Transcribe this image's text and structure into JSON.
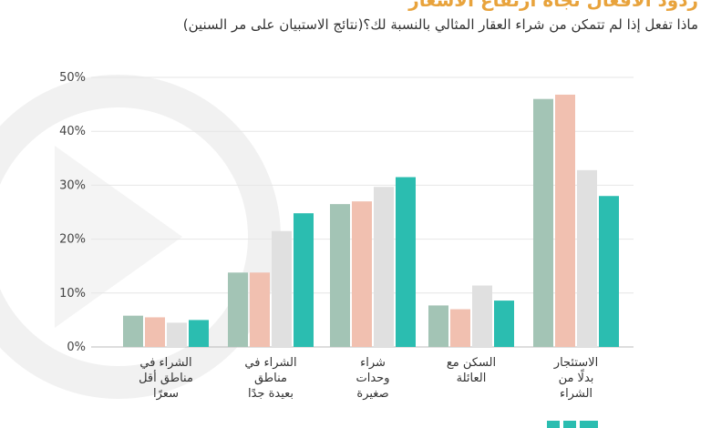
{
  "page": {
    "title": "ردود الأفعال تجاه ارتفاع الأسعار",
    "subtitle": "ماذا تفعل إذا لم تتمكن من شراء العقار المثالي بالنسبة لك؟(نتائج الاستبيان على مر السنين)"
  },
  "colors": {
    "series": [
      "#a3c4b5",
      "#f1c0b0",
      "#e0e0e0",
      "#2bbdb0"
    ],
    "title": "#e8a33c",
    "watermark": "#f1f1f1"
  },
  "chart_data": {
    "type": "bar",
    "title": "",
    "xlabel": "",
    "ylabel": "",
    "categories": [
      [
        "الشراء في",
        "مناطق أقل",
        "سعرًا"
      ],
      [
        "الشراء في",
        "مناطق",
        "بعيدة جدًا"
      ],
      [
        "شراء",
        "وحدات",
        "صغيرة"
      ],
      [
        "السكن مع",
        "العائلة"
      ],
      [
        "الاستئجار",
        "بدلًا من",
        "الشراء"
      ]
    ],
    "series": [
      {
        "values": [
          5.8,
          13.8,
          26.5,
          7.7,
          46
        ]
      },
      {
        "values": [
          5.5,
          13.8,
          27.0,
          7.0,
          46.8
        ]
      },
      {
        "values": [
          4.5,
          21.5,
          29.7,
          11.4,
          32.8
        ]
      },
      {
        "values": [
          5.0,
          24.8,
          31.5,
          8.6,
          28
        ]
      }
    ],
    "yticks": [
      "0%",
      "10%",
      "20%",
      "30%",
      "40%",
      "50%"
    ],
    "ylim": [
      0,
      50
    ],
    "grid": true,
    "legend": "none"
  }
}
